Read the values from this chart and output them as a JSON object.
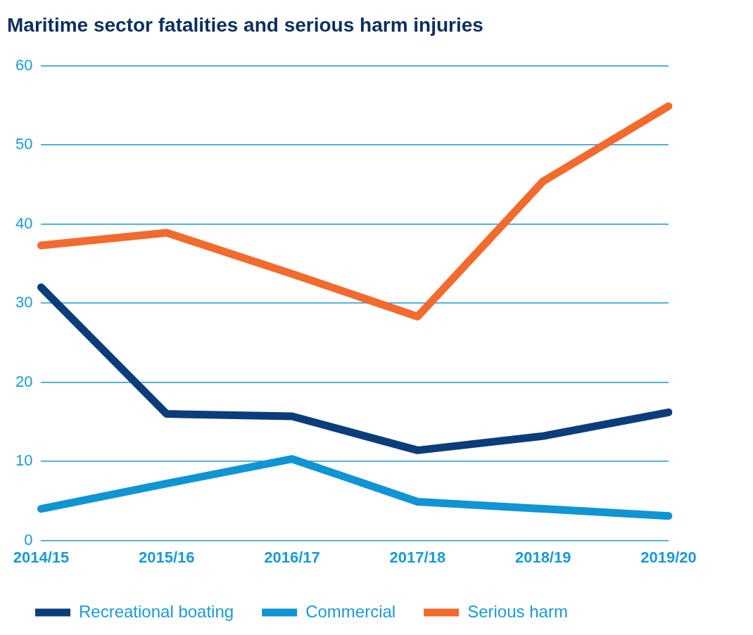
{
  "chart_data": {
    "type": "line",
    "title": "Maritime sector fatalities and serious harm injuries",
    "categories": [
      "2014/15",
      "2015/16",
      "2016/17",
      "2017/18",
      "2018/19",
      "2019/20"
    ],
    "series": [
      {
        "name": "Recreational boating",
        "color": "#0b3d7a",
        "values": [
          32,
          16,
          15.7,
          11.4,
          13.2,
          16.2
        ]
      },
      {
        "name": "Commercial",
        "color": "#0f94d4",
        "values": [
          4,
          7.2,
          10.3,
          4.9,
          4,
          3.1
        ]
      },
      {
        "name": "Serious harm",
        "color": "#f26a2e",
        "values": [
          37.3,
          38.9,
          33.7,
          28.3,
          45.4,
          54.9
        ]
      }
    ],
    "ylim": [
      0,
      60
    ],
    "yticks": [
      0,
      10,
      20,
      30,
      40,
      50,
      60
    ],
    "grid": "y",
    "legend": "bottom",
    "marker": "none",
    "line_style": "solid"
  }
}
